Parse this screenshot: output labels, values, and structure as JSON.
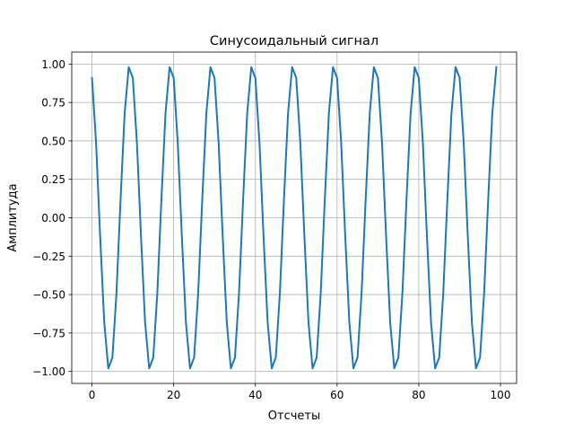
{
  "chart_data": {
    "type": "line",
    "title": "Синусоидальный сигнал",
    "xlabel": "Отсчеты",
    "ylabel": "Амплитуда",
    "xlim": [
      -4.95,
      103.95
    ],
    "ylim": [
      -1.078,
      1.078
    ],
    "grid": true,
    "xticks": [
      0,
      20,
      40,
      60,
      80,
      100
    ],
    "xtick_labels": [
      "0",
      "20",
      "40",
      "60",
      "80",
      "100"
    ],
    "yticks": [
      -1.0,
      -0.75,
      -0.5,
      -0.25,
      0.0,
      0.25,
      0.5,
      0.75,
      1.0
    ],
    "ytick_labels": [
      "−1.00",
      "−0.75",
      "−0.50",
      "−0.25",
      "0.00",
      "0.25",
      "0.50",
      "0.75",
      "1.00"
    ],
    "series": [
      {
        "color": "#1f77b4",
        "x_start": 0,
        "x_step": 1,
        "values": [
          0.91,
          0.49,
          -0.12,
          -0.68,
          -0.98,
          -0.91,
          -0.49,
          0.12,
          0.68,
          0.98,
          0.91,
          0.49,
          -0.12,
          -0.68,
          -0.98,
          -0.91,
          -0.49,
          0.12,
          0.68,
          0.98,
          0.91,
          0.49,
          -0.12,
          -0.68,
          -0.98,
          -0.91,
          -0.49,
          0.12,
          0.68,
          0.98,
          0.91,
          0.49,
          -0.12,
          -0.68,
          -0.98,
          -0.91,
          -0.49,
          0.12,
          0.68,
          0.98,
          0.91,
          0.49,
          -0.12,
          -0.68,
          -0.98,
          -0.91,
          -0.49,
          0.12,
          0.68,
          0.98,
          0.91,
          0.49,
          -0.12,
          -0.68,
          -0.98,
          -0.91,
          -0.49,
          0.12,
          0.68,
          0.98,
          0.91,
          0.49,
          -0.12,
          -0.68,
          -0.98,
          -0.91,
          -0.49,
          0.12,
          0.68,
          0.98,
          0.91,
          0.49,
          -0.12,
          -0.68,
          -0.98,
          -0.91,
          -0.49,
          0.12,
          0.68,
          0.98,
          0.91,
          0.49,
          -0.12,
          -0.68,
          -0.98,
          -0.91,
          -0.49,
          0.12,
          0.68,
          0.98,
          0.91,
          0.49,
          -0.12,
          -0.68,
          -0.98,
          -0.91,
          -0.49,
          0.12,
          0.68,
          0.98
        ]
      }
    ]
  }
}
